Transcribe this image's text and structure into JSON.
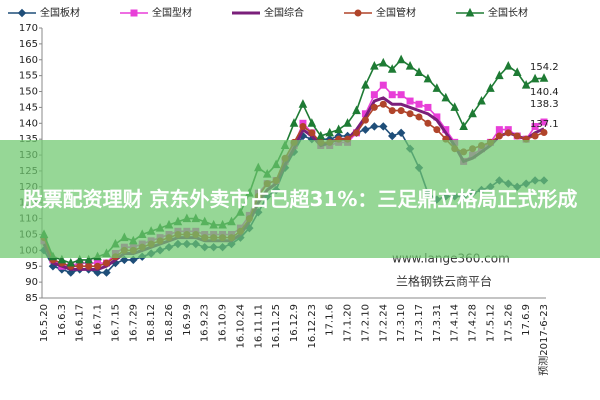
{
  "chart_data": {
    "type": "line",
    "categories": [
      "16.5.20",
      null,
      "16.6.3",
      null,
      "16.6.17",
      null,
      "16.7.1",
      null,
      "16.7.15",
      null,
      "16.7.29",
      null,
      "16.8.12",
      null,
      "16.8.26",
      null,
      "16.9.9",
      null,
      "16.9.23",
      null,
      "16.10.9",
      null,
      "16.10.24",
      null,
      "16.11.11",
      null,
      "16.11.25",
      null,
      "16.12.9",
      null,
      "16.12.23",
      null,
      "17.1.6",
      null,
      "17.1.20",
      null,
      "17.2.10",
      null,
      "17.2.24",
      null,
      "17.3.10",
      null,
      "17.3.17",
      null,
      "17.3.31",
      null,
      "17.4.14",
      null,
      "17.4.28",
      null,
      "17.5.12",
      null,
      "17.5.26",
      null,
      "17.6.9",
      null,
      "预测2017-6-23"
    ],
    "series": [
      {
        "name": "全国板材",
        "color": "#1f4e79",
        "marker": "diamond",
        "values": [
          100,
          95,
          94,
          93,
          94,
          94,
          93,
          93,
          96,
          97,
          97,
          98,
          99,
          100,
          101,
          102,
          102,
          102,
          101,
          101,
          101,
          102,
          104,
          107,
          112,
          117,
          119,
          126,
          131,
          136,
          135,
          135,
          135,
          136,
          136,
          137,
          138,
          139,
          139,
          136,
          137,
          132,
          126,
          118,
          116,
          117,
          117,
          117,
          118,
          119,
          120,
          122,
          121,
          120,
          121,
          122,
          122
        ]
      },
      {
        "name": "全国型材",
        "color": "#e83fd8",
        "marker": "square",
        "values": [
          103,
          97,
          95,
          95,
          96,
          96,
          96,
          96,
          99,
          101,
          101,
          102,
          103,
          104,
          105,
          106,
          106,
          106,
          105,
          105,
          105,
          105,
          107,
          111,
          118,
          121,
          122,
          128,
          133,
          140,
          137,
          133,
          133,
          134,
          134,
          137,
          143,
          149,
          152,
          149,
          149,
          147,
          146,
          145,
          142,
          138,
          134,
          128,
          130,
          132,
          134,
          138,
          138,
          136,
          135,
          139,
          140.4
        ]
      },
      {
        "name": "全国综合",
        "color": "#7a1f7a",
        "marker": "none",
        "values": [
          102,
          96,
          95,
          94,
          94,
          94,
          94,
          95,
          97,
          99,
          99,
          100,
          101,
          102,
          103,
          104,
          104,
          104,
          103,
          103,
          103,
          103,
          105,
          109,
          115,
          119,
          121,
          127,
          132,
          138,
          136,
          133,
          134,
          135,
          135,
          138,
          142,
          147,
          148,
          146,
          146,
          145,
          144,
          143,
          141,
          137,
          133,
          128,
          129,
          131,
          133,
          136,
          137,
          136,
          135,
          137,
          138.3
        ]
      },
      {
        "name": "全国管材",
        "color": "#b0442a",
        "marker": "circle",
        "values": [
          104,
          97,
          96,
          95,
          95,
          95,
          95,
          96,
          98,
          100,
          100,
          101,
          102,
          103,
          104,
          105,
          105,
          105,
          104,
          104,
          104,
          104,
          106,
          110,
          117,
          121,
          122,
          129,
          134,
          139,
          137,
          134,
          134,
          135,
          135,
          137,
          141,
          145,
          146,
          144,
          144,
          143,
          142,
          140,
          138,
          135,
          132,
          131,
          132,
          133,
          134,
          136,
          137,
          136,
          135,
          136,
          137.1
        ]
      },
      {
        "name": "全国长材",
        "color": "#1e7b34",
        "marker": "triangle",
        "values": [
          105,
          98,
          97,
          96,
          97,
          97,
          98,
          99,
          102,
          104,
          103,
          105,
          106,
          107,
          108,
          109,
          110,
          110,
          109,
          108,
          108,
          109,
          112,
          118,
          126,
          124,
          127,
          133,
          140,
          146,
          140,
          136,
          137,
          138,
          140,
          144,
          152,
          158,
          159,
          157,
          160,
          158,
          156,
          154,
          151,
          148,
          145,
          139,
          143,
          147,
          151,
          155,
          158,
          156,
          152,
          154,
          154.2
        ]
      }
    ],
    "ylim": [
      85,
      170
    ],
    "yticks": [
      85,
      90,
      95,
      100,
      105,
      110,
      115,
      120,
      125,
      130,
      135,
      140,
      145,
      150,
      155,
      160,
      165,
      170
    ],
    "grid": false,
    "legend": "top",
    "annotations": [
      "154.2",
      "140.4",
      "138.3",
      "137.1"
    ],
    "banner": "股票配资理财 京东外卖市占已超31%：三足鼎立格局正式形成",
    "watermarks": [
      "www.lange360.com",
      "兰格钢铁云商平台"
    ]
  }
}
